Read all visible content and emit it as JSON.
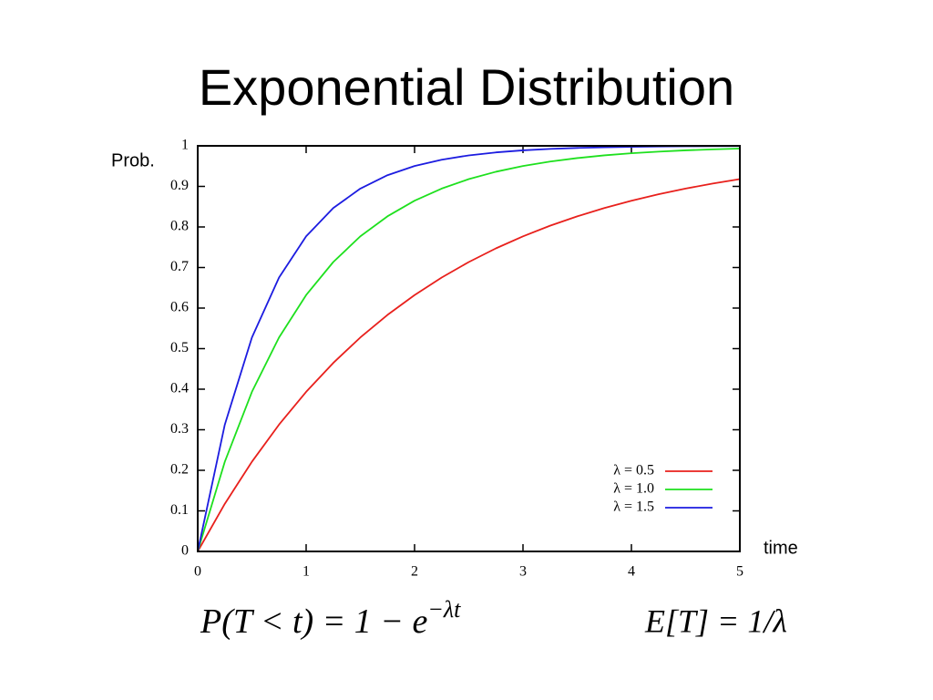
{
  "chart_data": {
    "type": "line",
    "title": "Exponential Distribution",
    "y_label": "Prob.",
    "x_label": "time",
    "x": [
      0,
      0.25,
      0.5,
      0.75,
      1,
      1.25,
      1.5,
      1.75,
      2,
      2.25,
      2.5,
      2.75,
      3,
      3.25,
      3.5,
      3.75,
      4,
      4.25,
      4.5,
      4.75,
      5
    ],
    "series": [
      {
        "name": "λ = 0.5",
        "color": "#e8201c",
        "values": [
          0,
          0.1175,
          0.2212,
          0.3127,
          0.3935,
          0.4647,
          0.5276,
          0.5831,
          0.6321,
          0.6753,
          0.7135,
          0.7472,
          0.7769,
          0.8031,
          0.8262,
          0.8466,
          0.8647,
          0.8806,
          0.8946,
          0.907,
          0.9179
        ]
      },
      {
        "name": "λ = 1.0",
        "color": "#1ee01e",
        "values": [
          0,
          0.2212,
          0.3935,
          0.5276,
          0.6321,
          0.7135,
          0.7769,
          0.8262,
          0.8647,
          0.8946,
          0.9179,
          0.9361,
          0.9502,
          0.9612,
          0.9698,
          0.9765,
          0.9817,
          0.9857,
          0.9889,
          0.9913,
          0.9933
        ]
      },
      {
        "name": "λ = 1.5",
        "color": "#1c1ce0",
        "values": [
          0,
          0.3127,
          0.5276,
          0.6753,
          0.7769,
          0.8466,
          0.8946,
          0.9276,
          0.9502,
          0.9658,
          0.9765,
          0.9838,
          0.9889,
          0.9924,
          0.9948,
          0.9964,
          0.9975,
          0.9983,
          0.9988,
          0.9992,
          0.9994
        ]
      }
    ],
    "xlim": [
      0,
      5
    ],
    "xticks": [
      0,
      1,
      2,
      3,
      4,
      5
    ],
    "ylim": [
      0,
      1
    ],
    "yticks": [
      0,
      0.1,
      0.2,
      0.3,
      0.4,
      0.5,
      0.6,
      0.7,
      0.8,
      0.9,
      1
    ],
    "legend": "lower right",
    "formula": {
      "left": "P(T < t) = 1 − e",
      "exponent": "−λt"
    },
    "expectation": "E[T] = 1/λ"
  }
}
